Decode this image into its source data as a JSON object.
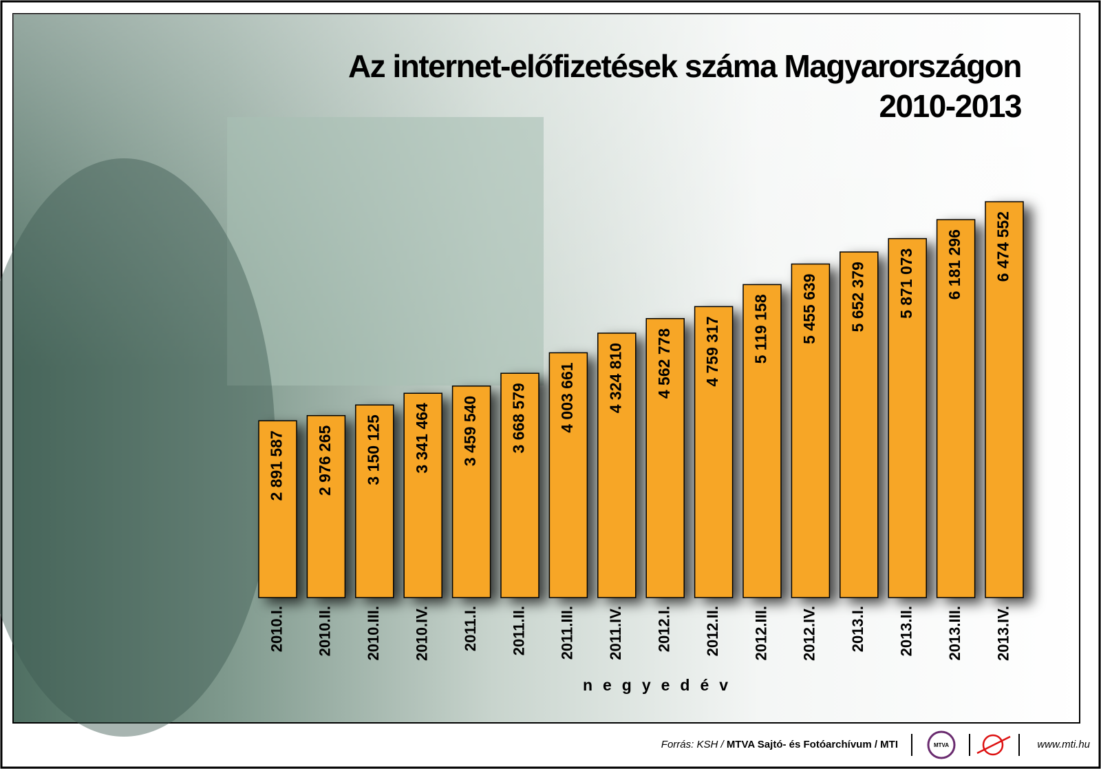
{
  "chart_data": {
    "type": "bar",
    "title": "Az internet-előfizetések száma Magyarországon",
    "subtitle": "2010-2013",
    "x_label": "negyedév",
    "categories": [
      "2010.I.",
      "2010.II.",
      "2010.III.",
      "2010.IV.",
      "2011.I.",
      "2011.II.",
      "2011.III.",
      "2011.IV.",
      "2012.I.",
      "2012.II.",
      "2012.III.",
      "2012.IV.",
      "2013.I.",
      "2013.II.",
      "2013.III.",
      "2013.IV."
    ],
    "values": [
      2891587,
      2976265,
      3150125,
      3341464,
      3459540,
      3668579,
      4003661,
      4324810,
      4562778,
      4759317,
      5119158,
      5455639,
      5652379,
      5871073,
      6181296,
      6474552
    ],
    "value_labels": [
      "2 891 587",
      "2 976 265",
      "3 150 125",
      "3 341 464",
      "3 459 540",
      "3 668 579",
      "4 003 661",
      "4 324 810",
      "4 562 778",
      "4 759 317",
      "5 119 158",
      "5 455 639",
      "5 652 379",
      "5 871 073",
      "6 181 296",
      "6 474 552"
    ],
    "color": "#f7a626",
    "source": {
      "prefix": "Forrás: KSH / ",
      "agency": "MTVA Sajtó- és Fotóarchívum / MTI",
      "logo": "MTVA",
      "url": "www.mti.hu"
    }
  }
}
